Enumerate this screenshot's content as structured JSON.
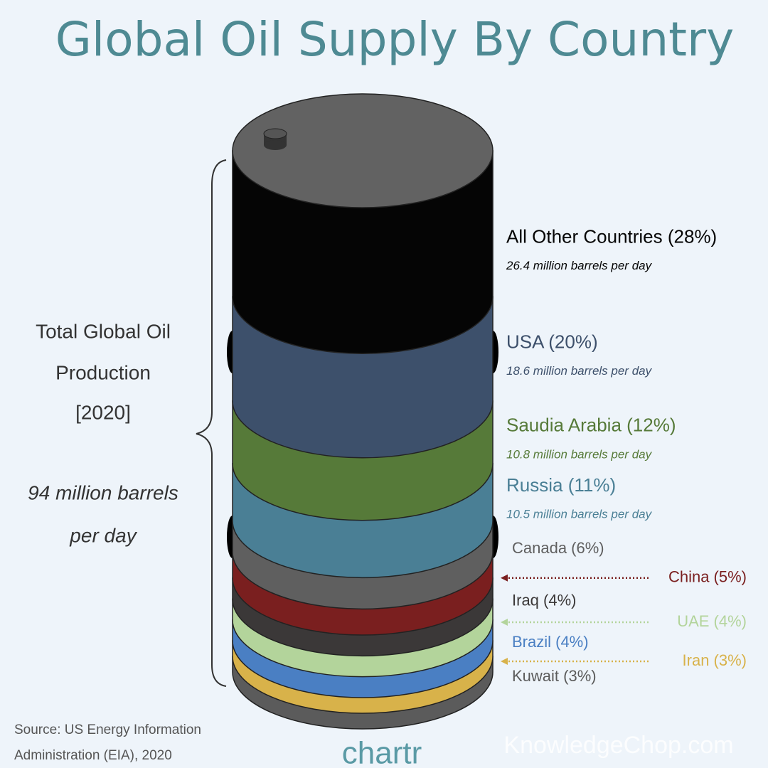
{
  "chart_data": {
    "type": "barrel",
    "title": "Global Oil Supply By Country",
    "series": [
      {
        "name": "All Other Countries (28%)",
        "color": "#050505",
        "values": [
          28
        ],
        "detail": "26.4 million barrels per day"
      },
      {
        "name": "USA (20%)",
        "color": "#3d506b",
        "values": [
          20
        ],
        "detail": "18.6 million barrels per day"
      },
      {
        "name": "Saudia Arabia (12%)",
        "color": "#567a39",
        "values": [
          12
        ],
        "detail": "10.8 million barrels per day"
      },
      {
        "name": "Russia (11%)",
        "color": "#4a7f95",
        "values": [
          11
        ],
        "detail": "10.5 million barrels per day"
      },
      {
        "name": "Canada (6%)",
        "color": "#5f5f5f",
        "values": [
          6
        ]
      },
      {
        "name": "China (5%)",
        "color": "#7a1f1f",
        "values": [
          5
        ]
      },
      {
        "name": "Iraq (4%)",
        "color": "#3b3838",
        "values": [
          4
        ]
      },
      {
        "name": "UAE (4%)",
        "color": "#b3d49b",
        "values": [
          4
        ]
      },
      {
        "name": "Brazil (4%)",
        "color": "#4a7fc3",
        "values": [
          4
        ]
      },
      {
        "name": "Iran (3%)",
        "color": "#d8b24a",
        "values": [
          3
        ]
      },
      {
        "name": "Kuwait (3%)",
        "color": "#5b5b5b",
        "values": [
          3
        ]
      }
    ],
    "annotation": {
      "lines": [
        "Total Global Oil",
        "Production",
        "[2020]"
      ],
      "total": [
        "94 million barrels",
        "per day"
      ]
    },
    "source": [
      "Source: US Energy Information",
      "Administration (EIA), 2020"
    ],
    "brand": "chartr",
    "watermark": "KnowledgeChop.com"
  }
}
